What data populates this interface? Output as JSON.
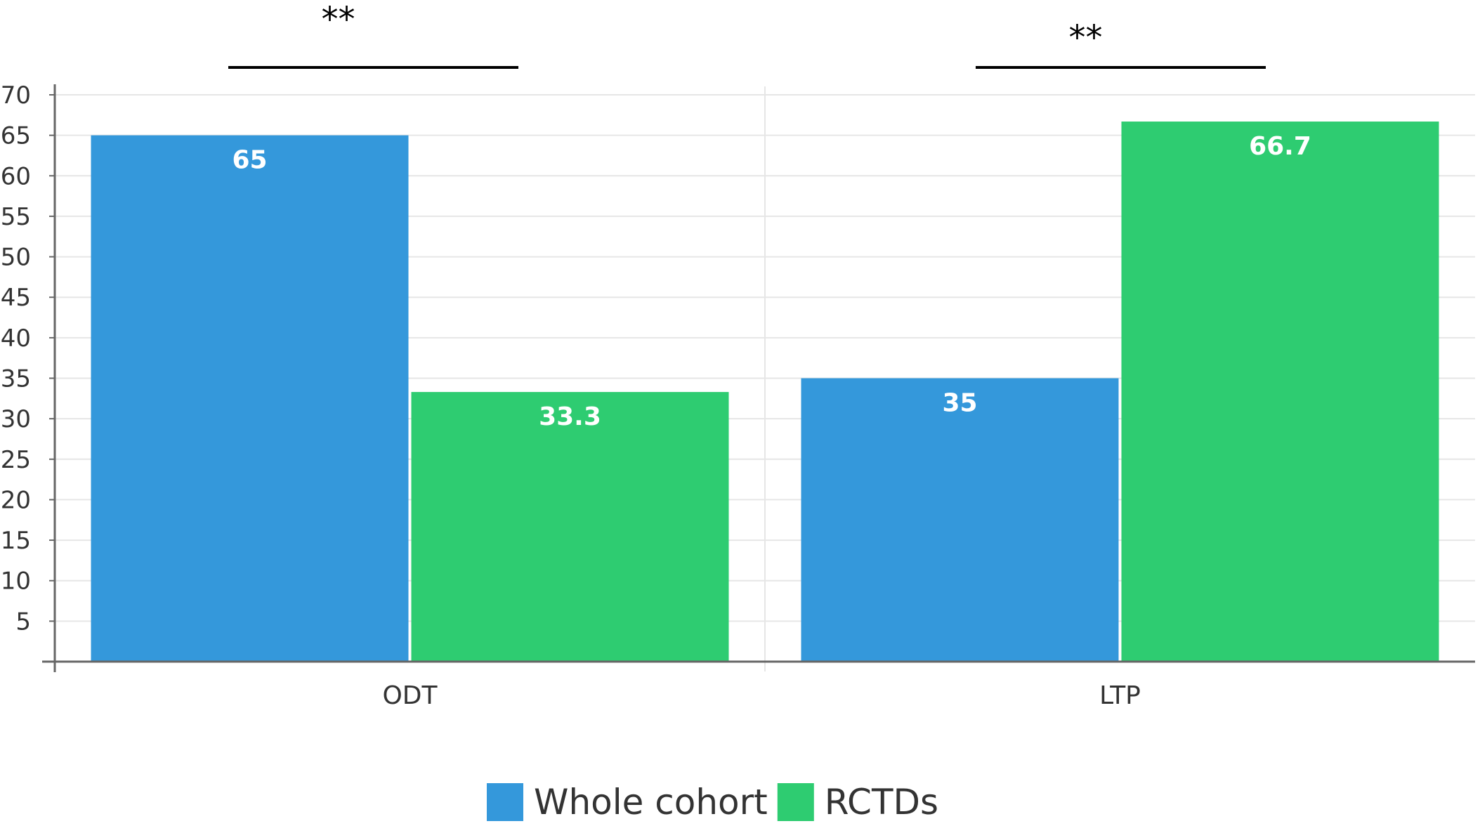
{
  "chart_data": {
    "type": "bar",
    "categories": [
      "ODT",
      "LTP"
    ],
    "series": [
      {
        "name": "Whole cohort",
        "values": [
          65,
          35
        ],
        "color": "#3498db"
      },
      {
        "name": "RCTDs",
        "values": [
          33.3,
          66.7
        ],
        "color": "#2ecc71"
      }
    ],
    "data_labels": [
      [
        "65",
        "35"
      ],
      [
        "33.3",
        "66.7"
      ]
    ],
    "ylim": [
      0,
      70
    ],
    "yticks": [
      5,
      10,
      15,
      20,
      25,
      30,
      35,
      40,
      45,
      50,
      55,
      60,
      65,
      70
    ],
    "grid": true,
    "legend": "bottom-center",
    "significance": [
      {
        "category": "ODT",
        "label": "**"
      },
      {
        "category": "LTP",
        "label": "**"
      }
    ],
    "title": "",
    "xlabel": "",
    "ylabel": ""
  }
}
